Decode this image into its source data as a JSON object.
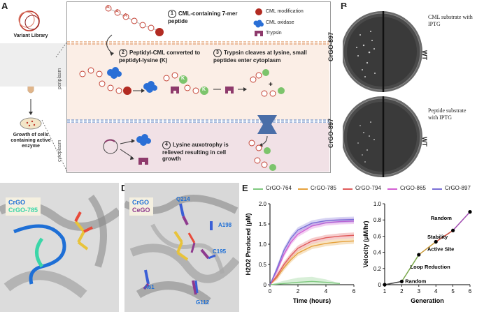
{
  "panel_labels": {
    "a": "A",
    "b": "B",
    "c": "C",
    "d": "D",
    "e": "E"
  },
  "panel_a": {
    "variant_library": "Variant Library",
    "growth_cells": "Growth of cells containing active enzyme",
    "periplasm": "periplasm",
    "cytoplasm": "cytoplasm",
    "step1": "CML-containing 7-mer peptide",
    "step2": "Peptidyl-CML converted to peptidyl-lysine (K)",
    "step3": "Trypsin cleaves at lysine, small peptides enter cytoplasm",
    "step4": "Lysine auxotrophy is relieved resulting in cell growth",
    "n1": "1",
    "n2": "2",
    "n3": "3",
    "n4": "4",
    "legend": {
      "cml": "CML modification",
      "oxidase": "CML oxidase",
      "trypsin": "Trypsin"
    },
    "res_a": "A",
    "res_k": "K"
  },
  "panel_b": {
    "strain": "CrGO-897",
    "wt": "WT",
    "top_caption": "CML substrate with IPTG",
    "bottom_caption": "Peptide substrate with IPTG"
  },
  "panel_c": {
    "crgo": "CrGO",
    "crgo785": "CrGO-785"
  },
  "panel_d": {
    "crgo": "CrGO",
    "cego": "CeGO",
    "q214": "Q214",
    "a198": "A198",
    "c195": "C195",
    "a61": "A61",
    "g112": "G112"
  },
  "colors": {
    "c764": "#7fc97f",
    "c785": "#e6a23c",
    "c794": "#e05a5a",
    "c865": "#d35fd3",
    "c897": "#7a6fd6",
    "velocity": "#8a3a8a"
  },
  "chart_data": [
    {
      "type": "line",
      "xlabel": "Time (hours)",
      "ylabel": "H2O2 Produced (μM)",
      "xlim": [
        0,
        6
      ],
      "ylim": [
        0,
        2
      ],
      "xticks": [
        "0",
        "2",
        "4",
        "6"
      ],
      "yticks": [
        "0",
        "0.5",
        "1.0",
        "1.5",
        "2.0"
      ],
      "legend_position": "top",
      "series": [
        {
          "name": "CrGO-764",
          "x": [
            0,
            1,
            2,
            3,
            4,
            5
          ],
          "values": [
            0.0,
            0.03,
            0.06,
            0.08,
            0.06,
            0.03
          ]
        },
        {
          "name": "CrGO-785",
          "x": [
            0,
            0.5,
            1,
            1.5,
            2,
            3,
            4,
            5,
            6
          ],
          "values": [
            0,
            0.18,
            0.42,
            0.62,
            0.78,
            0.95,
            1.02,
            1.06,
            1.08
          ]
        },
        {
          "name": "CrGO-794",
          "x": [
            0,
            0.5,
            1,
            1.5,
            2,
            3,
            4,
            5,
            6
          ],
          "values": [
            0,
            0.22,
            0.5,
            0.72,
            0.9,
            1.08,
            1.16,
            1.2,
            1.22
          ]
        },
        {
          "name": "CrGO-865",
          "x": [
            0,
            0.5,
            1,
            1.5,
            2,
            3,
            4,
            5,
            6
          ],
          "values": [
            0,
            0.35,
            0.75,
            1.05,
            1.25,
            1.45,
            1.53,
            1.56,
            1.57
          ]
        },
        {
          "name": "CrGO-897",
          "x": [
            0,
            0.5,
            1,
            1.5,
            2,
            3,
            4,
            5,
            6
          ],
          "values": [
            0,
            0.4,
            0.85,
            1.15,
            1.35,
            1.52,
            1.58,
            1.6,
            1.61
          ]
        }
      ]
    },
    {
      "type": "line",
      "xlabel": "Generation",
      "ylabel": "Velocity (μM/hr)",
      "xlim": [
        1,
        6
      ],
      "ylim": [
        0,
        1
      ],
      "xticks": [
        "1",
        "2",
        "3",
        "4",
        "5",
        "6"
      ],
      "yticks": [
        "0",
        "0.2",
        "0.4",
        "0.6",
        "0.8",
        "1.0"
      ],
      "x": [
        1,
        2,
        3,
        4,
        5,
        6
      ],
      "values": [
        0.0,
        0.04,
        0.37,
        0.53,
        0.67,
        0.9
      ],
      "annotations": [
        "Random",
        "Loop Reduction",
        "Active Site",
        "Stability",
        "Random"
      ]
    }
  ]
}
